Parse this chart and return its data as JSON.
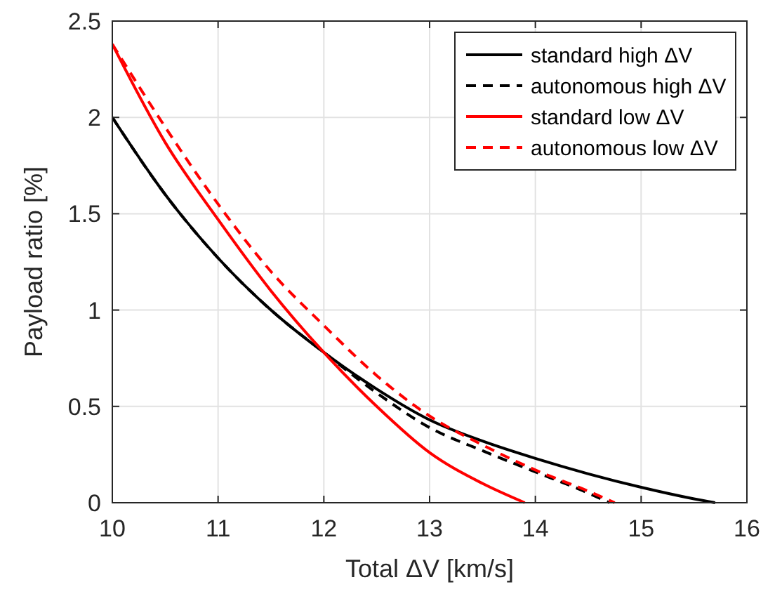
{
  "chart_data": {
    "type": "line",
    "xlabel": "Total ΔV  [km/s]",
    "ylabel": "Payload ratio [%]",
    "xlim": [
      10,
      16
    ],
    "ylim": [
      0,
      2.5
    ],
    "xticks": [
      10,
      11,
      12,
      13,
      14,
      15,
      16
    ],
    "yticks": [
      0,
      0.5,
      1,
      1.5,
      2,
      2.5
    ],
    "grid": true,
    "legend": "top right",
    "series": [
      {
        "name": "standard high ΔV",
        "color": "#000000",
        "line_style": "solid",
        "x": [
          10,
          10.5,
          11,
          11.5,
          12,
          12.5,
          13,
          13.5,
          14,
          14.5,
          15,
          15.5,
          15.7
        ],
        "values": [
          2.0,
          1.6,
          1.27,
          1.0,
          0.78,
          0.59,
          0.43,
          0.32,
          0.23,
          0.15,
          0.08,
          0.02,
          0
        ]
      },
      {
        "name": "autonomous high ΔV",
        "color": "#000000",
        "line_style": "dashed",
        "x": [
          10,
          10.5,
          11,
          11.5,
          12,
          12.5,
          13,
          13.5,
          14,
          14.5,
          14.7
        ],
        "values": [
          2.0,
          1.6,
          1.27,
          1.0,
          0.78,
          0.57,
          0.39,
          0.27,
          0.16,
          0.05,
          0
        ]
      },
      {
        "name": "standard low ΔV",
        "color": "#ff0000",
        "line_style": "solid",
        "x": [
          10,
          10.5,
          11,
          11.5,
          12,
          12.5,
          13,
          13.5,
          13.9
        ],
        "values": [
          2.38,
          1.87,
          1.47,
          1.1,
          0.78,
          0.5,
          0.26,
          0.1,
          0
        ]
      },
      {
        "name": "autonomous low ΔV",
        "color": "#ff0000",
        "line_style": "dashed",
        "x": [
          10,
          10.5,
          11,
          11.5,
          12,
          12.5,
          13,
          13.5,
          14,
          14.5,
          14.75
        ],
        "values": [
          2.38,
          1.95,
          1.55,
          1.2,
          0.92,
          0.66,
          0.45,
          0.3,
          0.17,
          0.06,
          0
        ]
      }
    ]
  }
}
